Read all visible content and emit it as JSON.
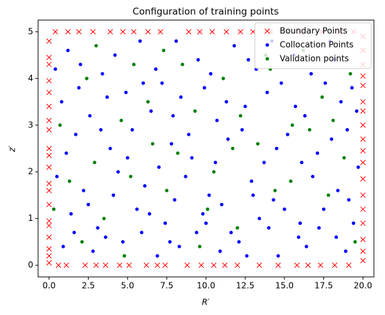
{
  "chart_data": {
    "type": "scatter",
    "title": "Configuration of training points",
    "xlabel": "R′",
    "ylabel": "z′",
    "xlim": [
      -0.7,
      20.7
    ],
    "ylim": [
      -0.25,
      5.25
    ],
    "xticks": [
      {
        "value": 0,
        "label": "0.0"
      },
      {
        "value": 2.5,
        "label": "2.5"
      },
      {
        "value": 5,
        "label": "5.0"
      },
      {
        "value": 7.5,
        "label": "7.5"
      },
      {
        "value": 10,
        "label": "10.0"
      },
      {
        "value": 12.5,
        "label": "12.5"
      },
      {
        "value": 15,
        "label": "15.0"
      },
      {
        "value": 17.5,
        "label": "17.5"
      },
      {
        "value": 20,
        "label": "20.0"
      }
    ],
    "yticks": [
      0,
      1,
      2,
      3,
      4,
      5
    ],
    "legend": "upper right",
    "series": [
      {
        "name": "Boundary Points",
        "color": "#ff0000",
        "marker": "x",
        "x": [
          0,
          0,
          0,
          0,
          0,
          0,
          0,
          0,
          0,
          0,
          0,
          0,
          0,
          0,
          0,
          0,
          0,
          0,
          0,
          0,
          20,
          20,
          20,
          20,
          20,
          20,
          20,
          20,
          20,
          20,
          20,
          20,
          20,
          20,
          20,
          20,
          20,
          20,
          0.6,
          1.1,
          2.3,
          3.0,
          3.6,
          4.5,
          5.1,
          6.2,
          6.9,
          7.4,
          8.8,
          9.7,
          10.5,
          11.2,
          12.0,
          13.4,
          14.6,
          15.8,
          16.5,
          17.3,
          18.2,
          19.1,
          0.4,
          1.2,
          1.9,
          2.8,
          3.9,
          4.7,
          5.4,
          6.3,
          7.1,
          8.9,
          9.6,
          10.4,
          11.3,
          12.2,
          13.0,
          14.1,
          15.2,
          16.0,
          17.4,
          18.5,
          19.4
        ],
        "values": [
          0.05,
          0.2,
          0.35,
          0.6,
          0.85,
          0.95,
          1.3,
          1.6,
          1.75,
          2.1,
          2.35,
          2.5,
          2.9,
          3.1,
          3.4,
          3.7,
          3.95,
          4.3,
          4.45,
          4.8,
          0.1,
          0.3,
          0.55,
          0.9,
          1.2,
          1.5,
          1.85,
          2.2,
          2.45,
          2.7,
          3.0,
          3.3,
          3.5,
          3.85,
          4.05,
          4.3,
          4.6,
          4.9,
          0,
          0,
          0,
          0,
          0,
          0,
          0,
          0,
          0,
          0,
          0,
          0,
          0,
          0,
          0,
          0,
          0,
          0,
          0,
          0,
          0,
          0,
          5,
          5,
          5,
          5,
          5,
          5,
          5,
          5,
          5,
          5,
          5,
          5,
          5,
          5,
          5,
          5,
          5,
          5,
          5,
          5,
          5
        ]
      },
      {
        "name": "Collocation Points",
        "color": "#0000ff",
        "marker": "o",
        "x": [
          1.2,
          3.4,
          5.8,
          7.2,
          9.5,
          11.8,
          13.2,
          15.6,
          17.9,
          19.3,
          0.8,
          2.6,
          4.9,
          6.5,
          8.4,
          10.7,
          12.5,
          14.8,
          16.3,
          18.6,
          1.7,
          3.9,
          5.3,
          7.8,
          9.1,
          11.4,
          13.7,
          15.2,
          17.1,
          19.0,
          0.5,
          2.2,
          4.4,
          6.1,
          8.7,
          10.2,
          12.9,
          14.3,
          16.8,
          18.4,
          1.4,
          3.1,
          5.6,
          7.4,
          9.8,
          11.6,
          13.4,
          15.9,
          17.5,
          19.4,
          0.9,
          2.8,
          4.7,
          6.9,
          8.3,
          10.9,
          12.1,
          14.6,
          16.4,
          18.9,
          2.0,
          4.2,
          6.8,
          8.1,
          10.3,
          12.7,
          14.2,
          16.7,
          18.2,
          0.4,
          1.9,
          3.7,
          6.0,
          7.9,
          9.9,
          11.3,
          13.9,
          15.7,
          17.6,
          19.6,
          1.1,
          3.3,
          5.0,
          7.0,
          8.9,
          10.6,
          12.3,
          14.5,
          16.1,
          18.0,
          2.5,
          4.1,
          6.4,
          8.0,
          9.4,
          11.0,
          13.0,
          15.0,
          17.2,
          19.1,
          3.6,
          5.9,
          7.7,
          10.0,
          12.6,
          14.0,
          16.0,
          18.3,
          1.6,
          19.7
        ],
        "values": [
          4.6,
          4.1,
          4.8,
          3.9,
          4.4,
          4.7,
          4.2,
          4.5,
          4.8,
          3.8,
          3.5,
          3.2,
          3.7,
          3.3,
          3.6,
          3.1,
          3.4,
          3.9,
          3.2,
          3.5,
          2.8,
          2.5,
          2.9,
          2.6,
          2.3,
          2.7,
          2.2,
          2.8,
          2.4,
          2.9,
          1.9,
          1.6,
          2.0,
          1.7,
          1.9,
          1.5,
          1.8,
          1.4,
          1.9,
          1.6,
          1.1,
          0.8,
          1.2,
          0.9,
          1.1,
          0.7,
          1.0,
          0.6,
          1.2,
          0.9,
          0.4,
          0.3,
          0.5,
          0.2,
          0.4,
          0.3,
          0.5,
          0.2,
          0.4,
          0.3,
          4.3,
          4.5,
          4.2,
          4.8,
          4.1,
          4.4,
          4.8,
          4.1,
          4.4,
          4.2,
          3.8,
          3.6,
          3.9,
          3.2,
          3.8,
          3.5,
          3.7,
          3.4,
          3.9,
          3.3,
          2.4,
          2.9,
          2.3,
          2.1,
          2.8,
          2.2,
          2.9,
          2.5,
          2.2,
          2.7,
          1.3,
          1.5,
          1.1,
          1.4,
          0.7,
          1.3,
          1.5,
          1.2,
          0.8,
          1.4,
          0.6,
          0.7,
          0.5,
          0.9,
          0.2,
          0.8,
          0.9,
          0.6,
          0.7,
          2.1
        ]
      },
      {
        "name": "Validation points",
        "color": "#008000",
        "marker": "o",
        "x": [
          0.7,
          2.4,
          4.6,
          6.6,
          8.5,
          10.5,
          12.2,
          14.1,
          16.6,
          18.8,
          1.3,
          3.5,
          5.4,
          7.5,
          9.3,
          11.1,
          13.3,
          15.4,
          17.4,
          19.2,
          2.9,
          4.8,
          6.3,
          8.2,
          10.1,
          12.0,
          13.8,
          15.5,
          17.8,
          19.5,
          0.3,
          2.1,
          5.2,
          7.3,
          9.6,
          11.7,
          14.4,
          16.2,
          18.1,
          3.0
        ],
        "values": [
          3.0,
          4.0,
          3.1,
          2.6,
          4.3,
          2.0,
          3.2,
          4.2,
          2.9,
          2.3,
          1.8,
          1.0,
          4.3,
          1.6,
          3.3,
          4.0,
          2.6,
          1.8,
          3.6,
          4.1,
          2.2,
          0.2,
          3.5,
          2.4,
          1.2,
          0.8,
          4.5,
          3.0,
          1.5,
          0.5,
          1.2,
          0.5,
          1.9,
          4.6,
          0.4,
          2.5,
          1.6,
          4.6,
          3.1,
          4.7
        ]
      }
    ]
  }
}
